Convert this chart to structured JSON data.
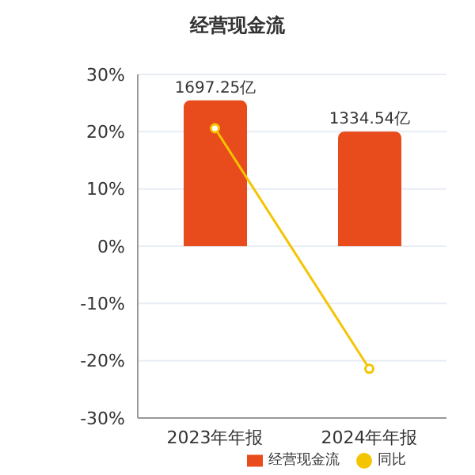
{
  "chart_data": {
    "type": "bar",
    "title": "经营现金流",
    "categories": [
      "2023年年报",
      "2024年年报"
    ],
    "series": [
      {
        "name": "经营现金流",
        "axis": "y2",
        "color": "#e84c1c",
        "values": [
          1697.25,
          1334.54
        ],
        "value_labels": [
          "1697.25亿",
          "1334.54亿"
        ]
      },
      {
        "name": "同比",
        "type": "line",
        "color": "#f5c400",
        "values": [
          20.6,
          -21.4
        ],
        "marker": "circle"
      }
    ],
    "ylim": [
      -30,
      30
    ],
    "yticks": [
      {
        "value": -30,
        "label": "-30%"
      },
      {
        "value": -20,
        "label": "-20%"
      },
      {
        "value": -10,
        "label": "-10%"
      },
      {
        "value": 0,
        "label": "0%"
      },
      {
        "value": 10,
        "label": "10%"
      },
      {
        "value": 20,
        "label": "20%"
      },
      {
        "value": 30,
        "label": "30%"
      }
    ],
    "y2lim": [
      -2000,
      2000
    ],
    "grid": "y",
    "legend": "bottom"
  }
}
